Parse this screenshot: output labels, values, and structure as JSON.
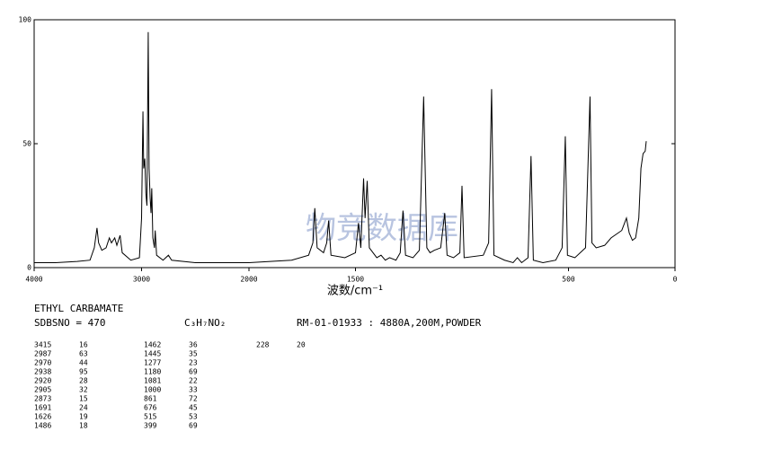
{
  "chart_data": {
    "type": "line",
    "xlabel": "波数/cm⁻¹",
    "watermark": "物竞数据库",
    "xlim": [
      4000,
      0
    ],
    "x_break": 2000,
    "xticks": [
      4000,
      3000,
      2000,
      1500,
      500,
      0
    ],
    "ylim": [
      0,
      100
    ],
    "yticks": [
      0,
      50,
      100
    ],
    "series": [
      {
        "color": "#000000",
        "x": [
          4000,
          3800,
          3600,
          3480,
          3440,
          3415,
          3400,
          3370,
          3330,
          3300,
          3280,
          3250,
          3230,
          3200,
          3180,
          3100,
          3020,
          3000,
          2987,
          2980,
          2970,
          2960,
          2950,
          2938,
          2930,
          2920,
          2912,
          2905,
          2895,
          2880,
          2873,
          2860,
          2800,
          2750,
          2720,
          2500,
          2200,
          2000,
          1800,
          1720,
          1700,
          1691,
          1680,
          1650,
          1635,
          1626,
          1615,
          1550,
          1500,
          1486,
          1475,
          1462,
          1455,
          1445,
          1435,
          1400,
          1380,
          1360,
          1340,
          1310,
          1290,
          1277,
          1265,
          1230,
          1200,
          1180,
          1165,
          1150,
          1130,
          1100,
          1081,
          1070,
          1040,
          1010,
          1000,
          990,
          900,
          875,
          861,
          850,
          800,
          760,
          740,
          720,
          690,
          676,
          665,
          620,
          560,
          530,
          515,
          505,
          470,
          420,
          399,
          390,
          370,
          330,
          300,
          250,
          228,
          215,
          200,
          185,
          170,
          160,
          150,
          140,
          135
        ],
        "values": [
          2,
          2,
          2.5,
          3,
          8,
          16,
          10,
          7,
          8,
          12,
          10,
          12,
          9,
          13,
          6,
          3,
          4,
          20,
          63,
          40,
          44,
          30,
          25,
          95,
          40,
          28,
          22,
          32,
          12,
          8,
          15,
          5,
          3,
          5,
          3,
          2,
          2,
          2,
          3,
          5,
          10,
          24,
          8,
          6,
          10,
          19,
          5,
          4,
          6,
          18,
          8,
          36,
          20,
          35,
          8,
          4,
          5,
          3,
          4,
          3,
          6,
          23,
          5,
          4,
          7,
          69,
          8,
          6,
          7,
          8,
          22,
          5,
          4,
          6,
          33,
          4,
          5,
          10,
          72,
          5,
          3,
          2,
          4,
          2,
          4,
          45,
          3,
          2,
          3,
          8,
          53,
          5,
          4,
          8,
          69,
          10,
          8,
          9,
          12,
          15,
          20,
          14,
          11,
          12,
          20,
          40,
          46,
          47,
          51
        ]
      }
    ]
  },
  "header": {
    "name": "ETHYL CARBAMATE",
    "sdbs": "SDBSNO = 470",
    "formula": "C₃H₇NO₂",
    "info": "RM-01-01933 : 4880A,200M,POWDER"
  },
  "peak_table": {
    "columns": [
      {
        "wavenumbers": [
          "3415",
          "2987",
          "2970",
          "2938",
          "2920",
          "2905",
          "2873",
          "1691",
          "1626",
          "1486"
        ],
        "intensities": [
          "16",
          "63",
          "44",
          "95",
          "28",
          "32",
          "15",
          "24",
          "19",
          "18"
        ]
      },
      {
        "wavenumbers": [
          "1462",
          "1445",
          "1277",
          "1180",
          "1081",
          "1000",
          "861",
          "676",
          "515",
          "399"
        ],
        "intensities": [
          "36",
          "35",
          "23",
          "69",
          "22",
          "33",
          "72",
          "45",
          "53",
          "69"
        ]
      },
      {
        "wavenumbers": [
          "228"
        ],
        "intensities": [
          "20"
        ]
      }
    ]
  }
}
